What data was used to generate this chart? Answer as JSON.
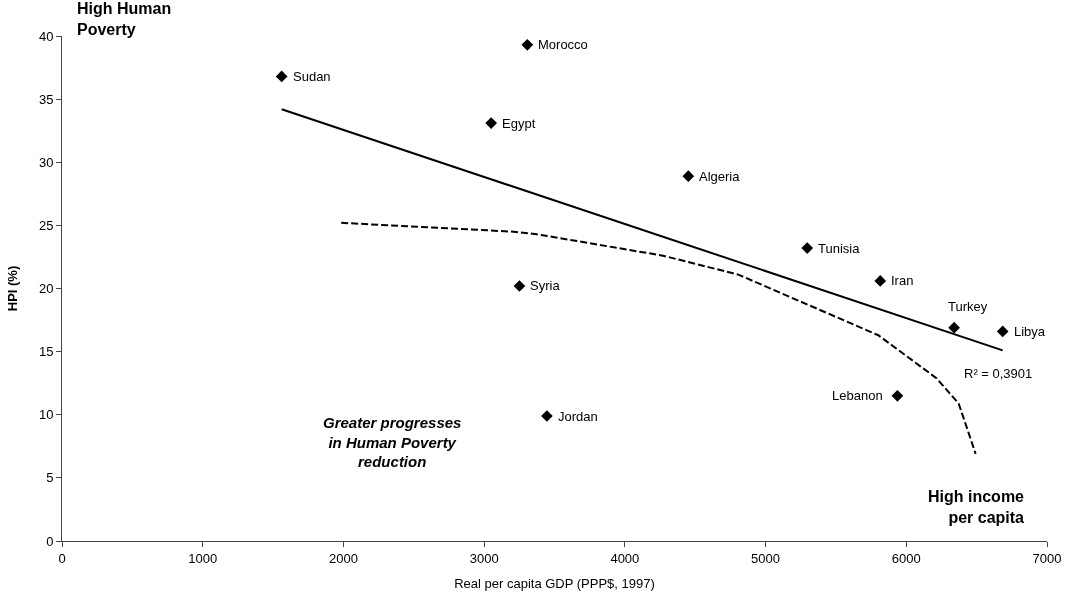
{
  "chart_data": {
    "type": "scatter",
    "xlabel": "Real per capita GDP (PPP$, 1997)",
    "ylabel": "HPI (%)",
    "xlim": [
      0,
      7000
    ],
    "xticks": [
      0,
      1000,
      2000,
      3000,
      4000,
      5000,
      6000,
      7000
    ],
    "ylim": [
      0,
      40
    ],
    "yticks": [
      0,
      5,
      10,
      15,
      20,
      25,
      30,
      35,
      40
    ],
    "grid": false,
    "series": [
      {
        "marker": "diamond",
        "color": "#000000",
        "x": [
          1561,
          3307,
          3050,
          4451,
          5296,
          5815,
          3251,
          3446,
          5937,
          6340,
          6685
        ],
        "values": [
          36.8,
          39.3,
          33.1,
          28.9,
          23.2,
          20.6,
          20.2,
          9.9,
          11.5,
          16.9,
          16.6
        ]
      },
      {
        "type": "line",
        "marker": "none",
        "line_style": "solid",
        "color": "#000000",
        "x": [
          1561,
          6685
        ],
        "values": [
          34.2,
          15.1
        ]
      },
      {
        "type": "line",
        "marker": "none",
        "line_style": "dashed",
        "color": "#000000",
        "x": [
          1984,
          3210,
          3373,
          4271,
          4806,
          5801,
          6214,
          6372,
          6493
        ],
        "values": [
          25.2,
          24.5,
          24.3,
          22.6,
          21.1,
          16.3,
          12.9,
          10.9,
          6.9
        ]
      }
    ],
    "annotations": [
      {
        "text": "Sudan",
        "x": 1561,
        "y": 36.8
      },
      {
        "text": "Morocco",
        "x": 3307,
        "y": 39.3
      },
      {
        "text": "Egypt",
        "x": 3050,
        "y": 33.1
      },
      {
        "text": "Algeria",
        "x": 4451,
        "y": 28.9
      },
      {
        "text": "Tunisia",
        "x": 5296,
        "y": 23.2
      },
      {
        "text": "Iran",
        "x": 5815,
        "y": 20.6
      },
      {
        "text": "Syria",
        "x": 3251,
        "y": 20.2
      },
      {
        "text": "Jordan",
        "x": 3446,
        "y": 9.9
      },
      {
        "text": "Lebanon",
        "x": 5937,
        "y": 11.5
      },
      {
        "text": "Turkey",
        "x": 6340,
        "y": 16.9
      },
      {
        "text": "Libya",
        "x": 6685,
        "y": 16.6
      },
      {
        "text": "R² = 0,3901",
        "x": 6685,
        "y": 15.1
      },
      "High Human Poverty",
      "Greater progresses in Human Poverty reduction",
      "High income per capita"
    ]
  }
}
